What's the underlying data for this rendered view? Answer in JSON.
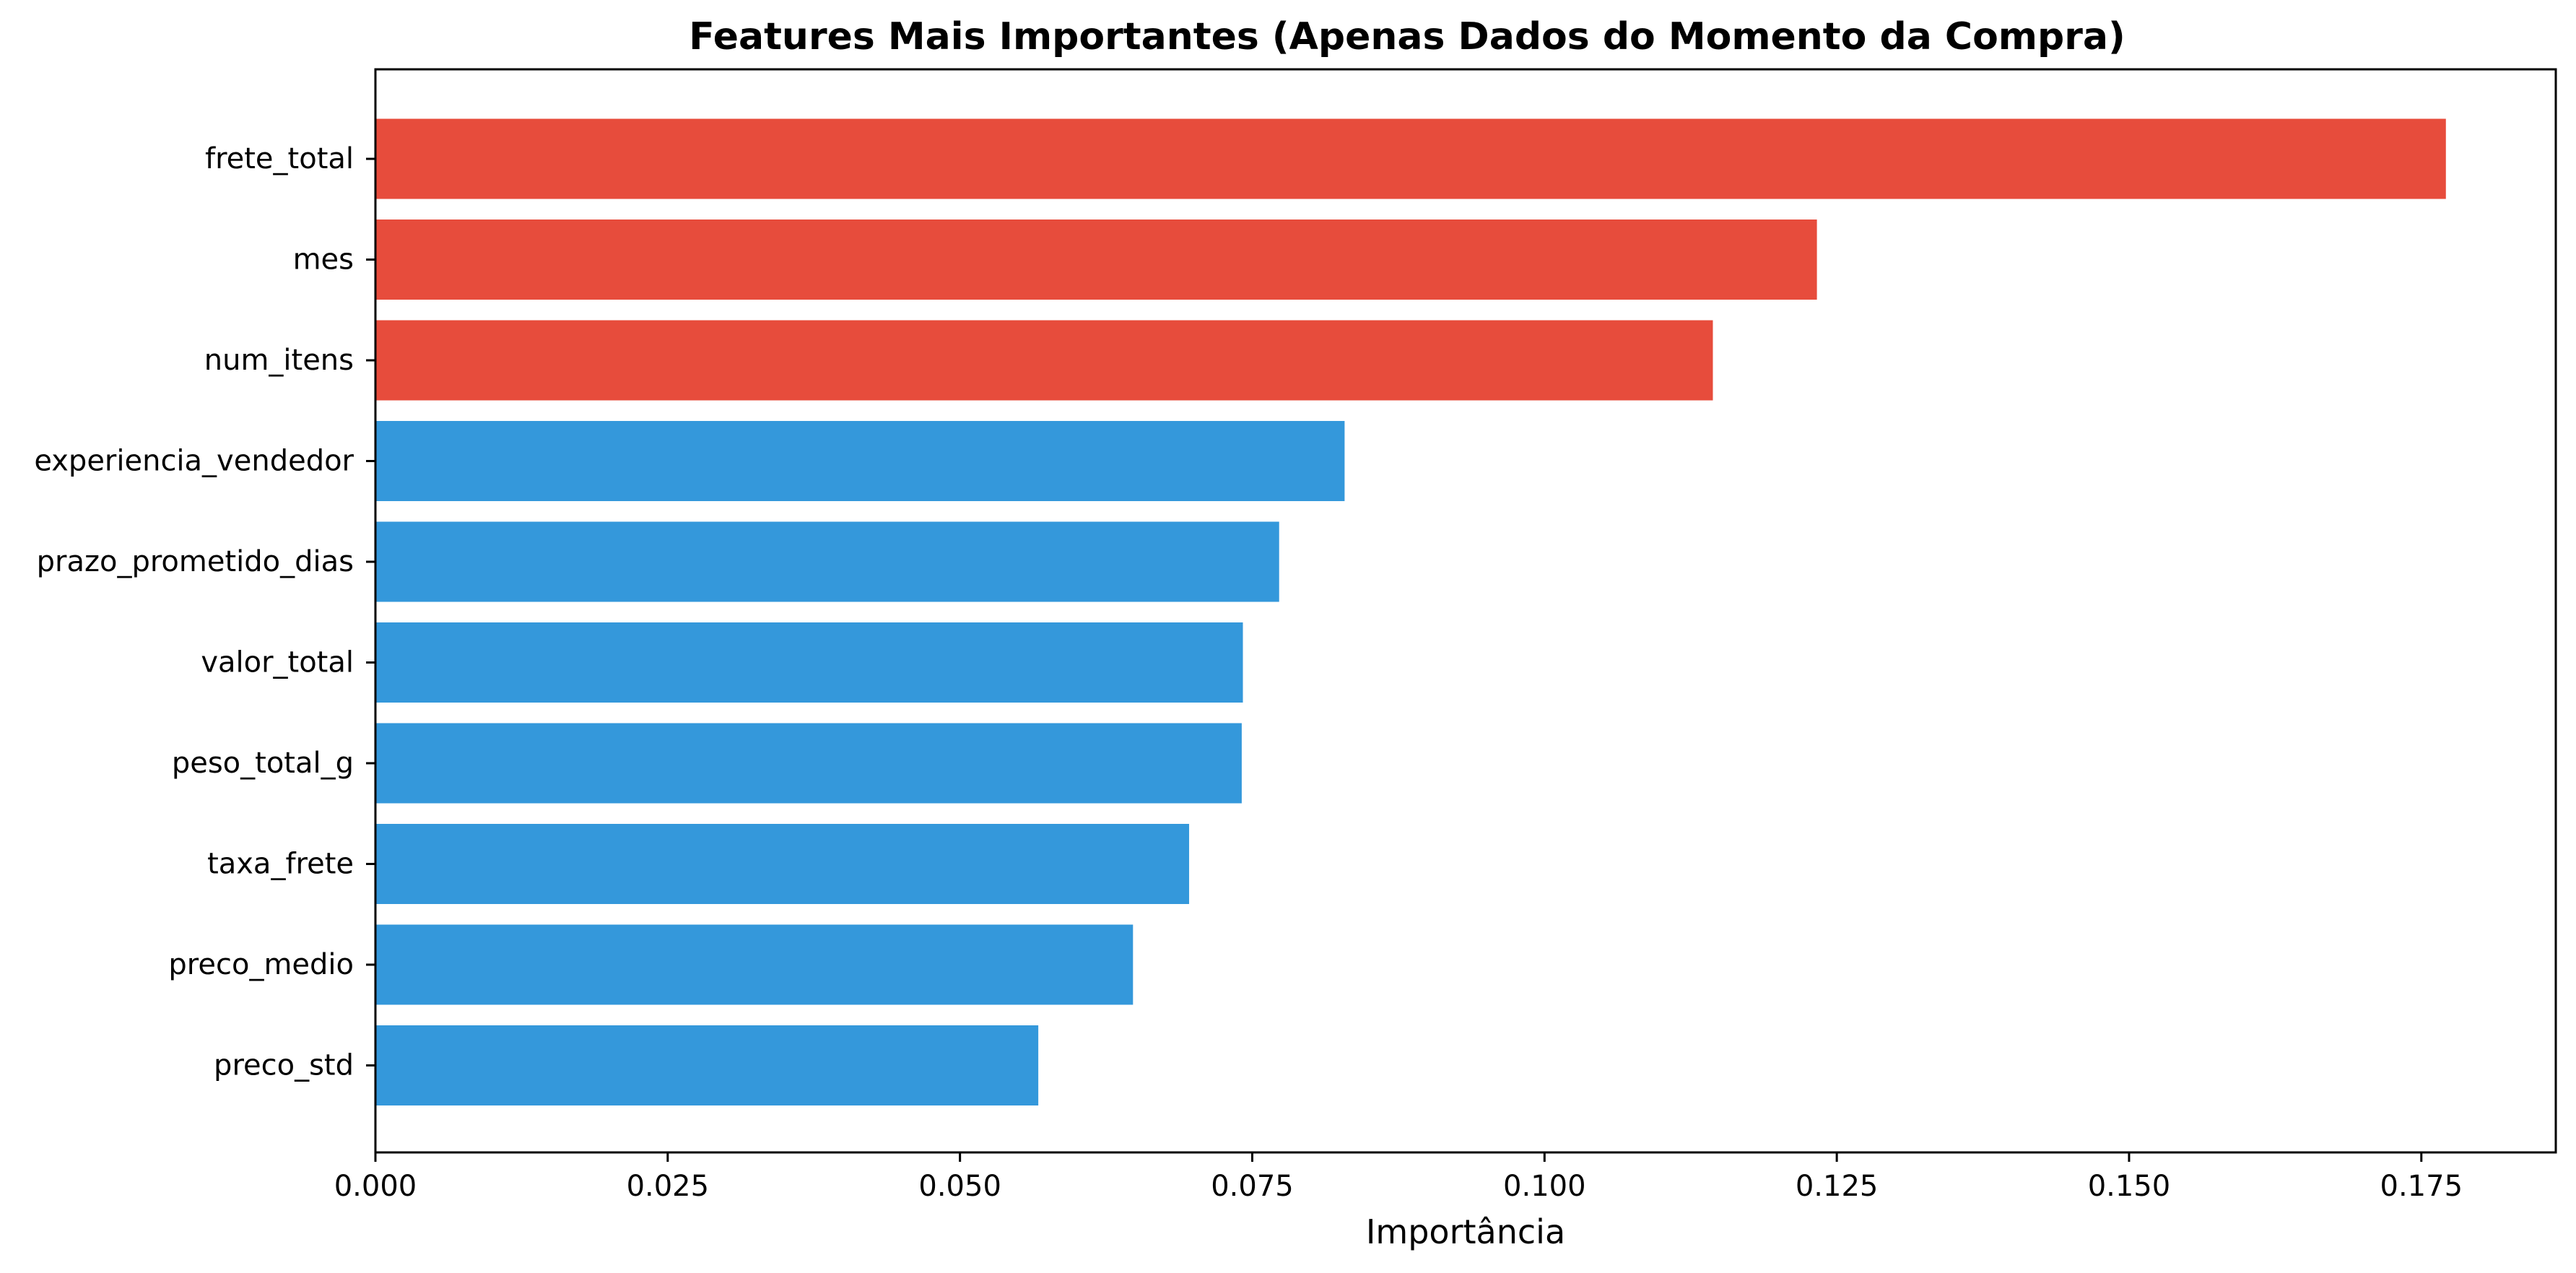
{
  "chart_data": {
    "type": "bar",
    "orientation": "horizontal",
    "title": "Features Mais Importantes (Apenas Dados do Momento da Compra)",
    "xlabel": "Importância",
    "ylabel": "",
    "xlim": [
      0,
      0.1865
    ],
    "xticks": [
      "0.000",
      "0.025",
      "0.050",
      "0.075",
      "0.100",
      "0.125",
      "0.150",
      "0.175"
    ],
    "xtick_values": [
      0,
      0.025,
      0.05,
      0.075,
      0.1,
      0.125,
      0.15,
      0.175
    ],
    "grid": false,
    "legend": "none",
    "categories": [
      "frete_total",
      "mes",
      "num_itens",
      "experiencia_vendedor",
      "prazo_prometido_dias",
      "valor_total",
      "peso_total_g",
      "taxa_frete",
      "preco_medio",
      "preco_std"
    ],
    "values": [
      0.1771,
      0.1233,
      0.1144,
      0.0829,
      0.0773,
      0.0742,
      0.0741,
      0.0696,
      0.0648,
      0.0567
    ],
    "highlight_top_n": 3,
    "colors": {
      "highlight": "#E74C3C",
      "default": "#3498DB"
    }
  }
}
